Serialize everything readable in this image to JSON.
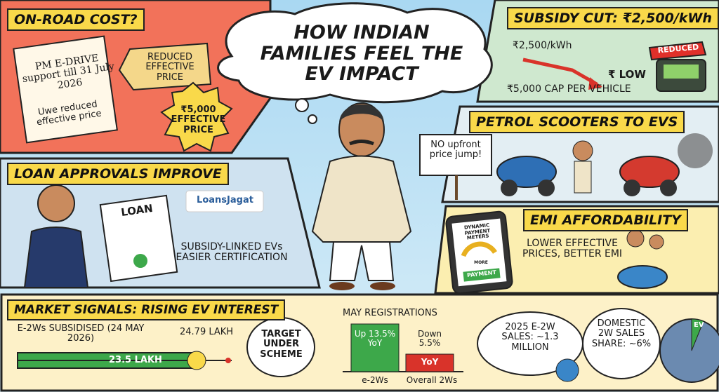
{
  "title": "HOW INDIAN FAMILIES FEEL THE EV IMPACT",
  "onroad": {
    "heading": "ON-ROAD COST?",
    "note": "PM E-DRIVE support till 31 July 2026",
    "handwritten": "Uwe reduced effective price",
    "tag": "REDUCED EFFECTIVE PRICE",
    "burst": "₹5,000 EFFECTIVE PRICE"
  },
  "subsidy": {
    "heading": "SUBSIDY CUT: ₹2,500/kWh",
    "rate": "₹2,500/kWh",
    "low": "₹ LOW",
    "cap": "₹5,000 CAP PER VEHICLE",
    "stamp": "REDUCED"
  },
  "scooters": {
    "heading": "PETROL SCOOTERS TO EVS",
    "sign": "NO upfront price jump!"
  },
  "loan": {
    "heading": "LOAN APPROVALS IMPROVE",
    "doc": "LOAN",
    "logo": "LoansJagat",
    "caption": "SUBSIDY-LINKED EVs EASIER CERTIFICATION"
  },
  "emi": {
    "heading": "EMI AFFORDABILITY",
    "phone_title": "DYNAMIC PAYMENT METERS",
    "gauge": "MORE",
    "button": "PAYMENT",
    "caption": "LOWER EFFECTIVE PRICES, BETTER EMI"
  },
  "market": {
    "heading": "MARKET SIGNALS: RISING EV INTEREST",
    "subsidised": "E-2Ws SUBSIDISED (24 MAY 2026)",
    "target": "24.79 LAKH",
    "achieved": "23.5 LAKH",
    "target_note": "TARGET UNDER SCHEME",
    "registrations": "MAY REGISTRATIONS",
    "up": "Up 13.5% YoY",
    "down": "Down 5.5%",
    "down_yoy": "YoY",
    "e2w_label": "e-2Ws",
    "overall_label": "Overall 2Ws",
    "sales": "2025 E-2W SALES: ~1.3 MILLION",
    "share": "DOMESTIC 2W SALES SHARE: ~6%",
    "pie_label": "EV"
  }
}
